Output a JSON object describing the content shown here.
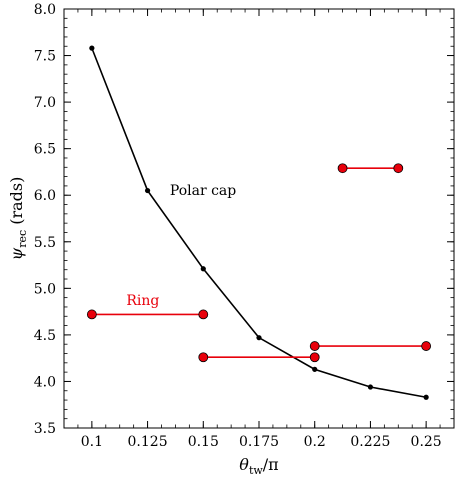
{
  "chart_data": {
    "type": "line",
    "xlabel_main": "θ",
    "xlabel_sub": "tw",
    "xlabel_tail": "/π",
    "ylabel_main": "ψ",
    "ylabel_sub": "rec",
    "ylabel_tail": " (rads)",
    "xlim": [
      0.0875,
      0.2625
    ],
    "ylim": [
      3.5,
      8.0
    ],
    "xticks": [
      0.1,
      0.125,
      0.15,
      0.175,
      0.2,
      0.225,
      0.25
    ],
    "xtick_labels": [
      "0.1",
      "0.125",
      "0.15",
      "0.175",
      "0.2",
      "0.225",
      "0.25"
    ],
    "yticks": [
      3.5,
      4.0,
      4.5,
      5.0,
      5.5,
      6.0,
      6.5,
      7.0,
      7.5,
      8.0
    ],
    "ytick_labels": [
      "3.5",
      "4.0",
      "4.5",
      "5.0",
      "5.5",
      "6.0",
      "6.5",
      "7.0",
      "7.5",
      "8.0"
    ],
    "grid": false,
    "series": [
      {
        "name": "Polar cap",
        "color": "#000000",
        "x": [
          0.1,
          0.125,
          0.15,
          0.175,
          0.2,
          0.225,
          0.25
        ],
        "y": [
          7.58,
          6.05,
          5.21,
          4.47,
          4.13,
          3.94,
          3.83
        ]
      }
    ],
    "ring_segments": {
      "name": "Ring",
      "color": "#e8000b",
      "segments": [
        {
          "x": [
            0.1,
            0.15
          ],
          "y": 4.72
        },
        {
          "x": [
            0.15,
            0.2
          ],
          "y": 4.26
        },
        {
          "x": [
            0.2,
            0.25
          ],
          "y": 4.38
        },
        {
          "x": [
            0.2125,
            0.2375
          ],
          "y": 6.29
        }
      ]
    },
    "annotations": [
      {
        "text": "Polar cap",
        "x": 0.135,
        "y": 6.0,
        "color": "#000000"
      },
      {
        "text": "Ring",
        "x": 0.1155,
        "y": 4.82,
        "color": "#e8000b"
      }
    ]
  }
}
